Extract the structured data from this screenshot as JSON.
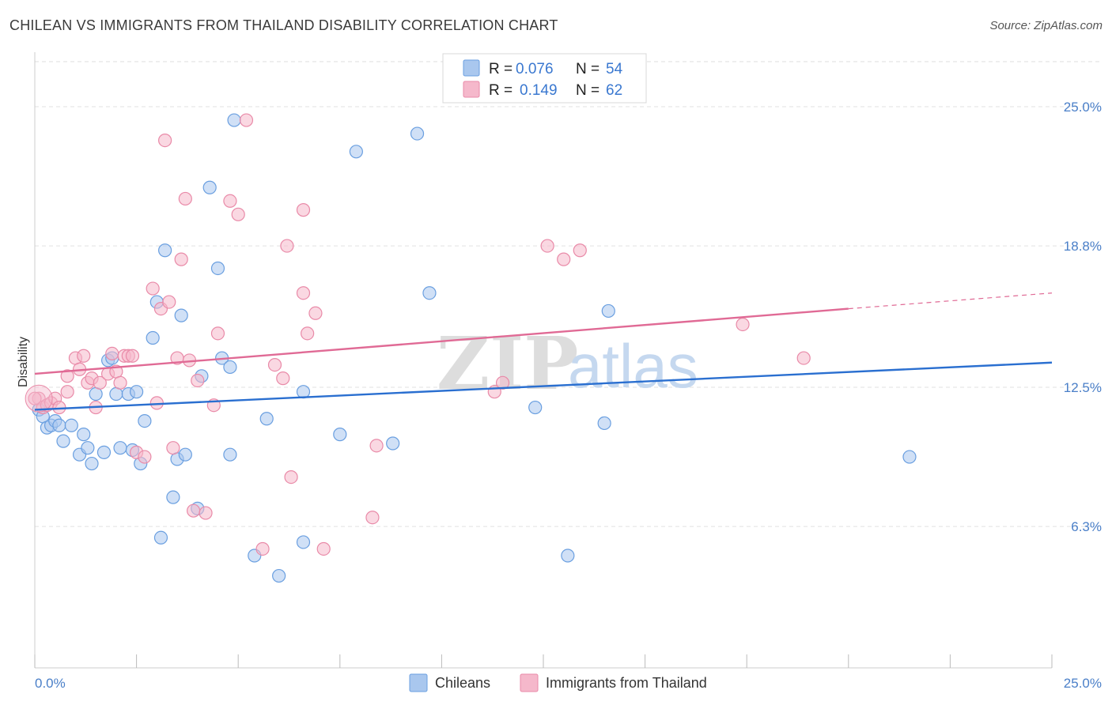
{
  "title": "CHILEAN VS IMMIGRANTS FROM THAILAND DISABILITY CORRELATION CHART",
  "source": "Source: ZipAtlas.com",
  "watermark": {
    "zip": "ZIP",
    "atlas": "atlas"
  },
  "legend": {
    "rows": [
      {
        "r_label": "R =",
        "r_value": "0.076",
        "n_label": "N =",
        "n_value": "54",
        "color": "#a9c7ee"
      },
      {
        "r_label": "R =",
        "r_value": "0.149",
        "n_label": "N =",
        "n_value": "62",
        "color": "#f5b8cb"
      }
    ]
  },
  "chart_data": {
    "type": "scatter",
    "title": "CHILEAN VS IMMIGRANTS FROM THAILAND DISABILITY CORRELATION CHART",
    "xlabel": "",
    "ylabel": "Disability",
    "xlim": [
      0,
      25
    ],
    "ylim": [
      0,
      27.5
    ],
    "x_tick_labels": [
      "0.0%",
      "25.0%"
    ],
    "y_ticks": [
      6.3,
      12.5,
      18.8,
      25.0
    ],
    "y_tick_labels": [
      "6.3%",
      "12.5%",
      "18.8%",
      "25.0%"
    ],
    "grid": true,
    "legend_position": "top-center",
    "series": [
      {
        "name": "Chileans",
        "color": "#6a9fe0",
        "fill": "#a9c7ee",
        "trend": {
          "x0": 0,
          "y0": 11.5,
          "x1": 25,
          "y1": 13.6,
          "color": "#2a6fd0"
        },
        "points": [
          [
            0.1,
            11.5
          ],
          [
            0.2,
            11.2
          ],
          [
            0.3,
            10.7
          ],
          [
            0.4,
            10.8
          ],
          [
            0.5,
            11.0
          ],
          [
            0.6,
            10.8
          ],
          [
            0.7,
            10.1
          ],
          [
            0.9,
            10.8
          ],
          [
            1.1,
            9.5
          ],
          [
            1.2,
            10.4
          ],
          [
            1.3,
            9.8
          ],
          [
            1.4,
            9.1
          ],
          [
            1.5,
            12.2
          ],
          [
            1.7,
            9.6
          ],
          [
            1.8,
            13.7
          ],
          [
            1.9,
            13.8
          ],
          [
            2.0,
            12.2
          ],
          [
            2.1,
            9.8
          ],
          [
            2.3,
            12.2
          ],
          [
            2.4,
            9.7
          ],
          [
            2.5,
            12.3
          ],
          [
            2.6,
            9.1
          ],
          [
            2.7,
            11.0
          ],
          [
            2.9,
            14.7
          ],
          [
            3.0,
            16.3
          ],
          [
            3.1,
            5.8
          ],
          [
            3.2,
            18.6
          ],
          [
            3.4,
            7.6
          ],
          [
            3.5,
            9.3
          ],
          [
            3.6,
            15.7
          ],
          [
            3.7,
            9.5
          ],
          [
            4.0,
            7.1
          ],
          [
            4.1,
            13.0
          ],
          [
            4.3,
            21.4
          ],
          [
            4.5,
            17.8
          ],
          [
            4.6,
            13.8
          ],
          [
            4.8,
            9.5
          ],
          [
            4.8,
            13.4
          ],
          [
            4.9,
            24.4
          ],
          [
            5.4,
            5.0
          ],
          [
            5.7,
            11.1
          ],
          [
            6.0,
            4.1
          ],
          [
            6.6,
            5.6
          ],
          [
            6.6,
            12.3
          ],
          [
            7.5,
            10.4
          ],
          [
            7.9,
            23.0
          ],
          [
            8.8,
            10.0
          ],
          [
            9.4,
            23.8
          ],
          [
            9.7,
            16.7
          ],
          [
            12.3,
            11.6
          ],
          [
            13.1,
            5.0
          ],
          [
            14.0,
            10.9
          ],
          [
            14.1,
            15.9
          ],
          [
            21.5,
            9.4
          ]
        ]
      },
      {
        "name": "Immigrants from Thailand",
        "color": "#e98aa8",
        "fill": "#f5b8cb",
        "trend": {
          "x0": 0,
          "y0": 13.1,
          "x1": 20.0,
          "y1": 16.0,
          "x2": 25,
          "y2": 16.7,
          "color": "#e06a95"
        },
        "points": [
          [
            0.1,
            12.0
          ],
          [
            0.2,
            11.6
          ],
          [
            0.3,
            11.7
          ],
          [
            0.4,
            11.8
          ],
          [
            0.5,
            12.0
          ],
          [
            0.6,
            11.6
          ],
          [
            0.8,
            12.3
          ],
          [
            0.8,
            13.0
          ],
          [
            1.0,
            13.8
          ],
          [
            1.1,
            13.3
          ],
          [
            1.2,
            13.9
          ],
          [
            1.3,
            12.7
          ],
          [
            1.4,
            12.9
          ],
          [
            1.5,
            11.6
          ],
          [
            1.6,
            12.7
          ],
          [
            1.8,
            13.1
          ],
          [
            1.9,
            14.0
          ],
          [
            2.0,
            13.2
          ],
          [
            2.1,
            12.7
          ],
          [
            2.2,
            13.9
          ],
          [
            2.3,
            13.9
          ],
          [
            2.4,
            13.9
          ],
          [
            2.5,
            9.6
          ],
          [
            2.7,
            9.4
          ],
          [
            2.9,
            16.9
          ],
          [
            3.0,
            11.8
          ],
          [
            3.1,
            16.0
          ],
          [
            3.2,
            23.5
          ],
          [
            3.3,
            16.3
          ],
          [
            3.4,
            9.8
          ],
          [
            3.5,
            13.8
          ],
          [
            3.6,
            18.2
          ],
          [
            3.7,
            20.9
          ],
          [
            3.8,
            13.7
          ],
          [
            3.9,
            7.0
          ],
          [
            4.0,
            12.8
          ],
          [
            4.2,
            6.9
          ],
          [
            4.4,
            11.7
          ],
          [
            4.5,
            14.9
          ],
          [
            4.8,
            20.8
          ],
          [
            5.0,
            20.2
          ],
          [
            5.2,
            24.4
          ],
          [
            5.6,
            5.3
          ],
          [
            5.9,
            13.5
          ],
          [
            6.1,
            12.9
          ],
          [
            6.2,
            18.8
          ],
          [
            6.3,
            8.5
          ],
          [
            6.6,
            20.4
          ],
          [
            6.6,
            16.7
          ],
          [
            6.7,
            14.9
          ],
          [
            6.9,
            15.8
          ],
          [
            7.1,
            5.3
          ],
          [
            8.3,
            6.7
          ],
          [
            8.4,
            9.9
          ],
          [
            11.3,
            12.3
          ],
          [
            11.5,
            12.7
          ],
          [
            12.6,
            18.8
          ],
          [
            13.0,
            18.2
          ],
          [
            13.4,
            18.6
          ],
          [
            17.4,
            15.3
          ],
          [
            18.9,
            13.8
          ],
          [
            0.0,
            12.0
          ]
        ]
      }
    ]
  },
  "bottom_legend": [
    {
      "label": "Chileans",
      "color": "#a9c7ee",
      "border": "#6a9fe0"
    },
    {
      "label": "Immigrants from Thailand",
      "color": "#f5b8cb",
      "border": "#e98aa8"
    }
  ]
}
